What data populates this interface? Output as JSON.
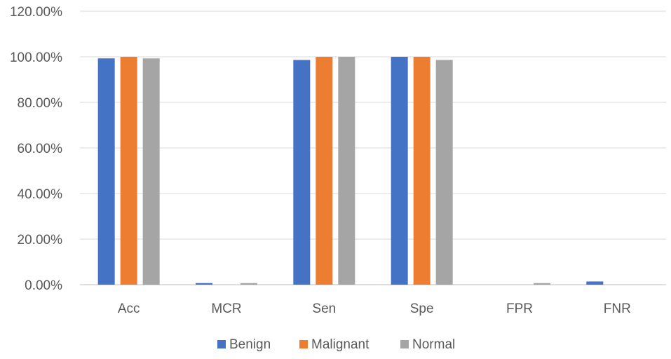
{
  "chart_data": {
    "type": "bar",
    "categories": [
      "Acc",
      "MCR",
      "Sen",
      "Spe",
      "FPR",
      "FNR"
    ],
    "series": [
      {
        "name": "Benign",
        "color": "#4472C4",
        "values": [
          99.3,
          0.7,
          98.6,
          100.0,
          0.0,
          1.4
        ]
      },
      {
        "name": "Malignant",
        "color": "#ED7D31",
        "values": [
          100.0,
          0.0,
          100.0,
          100.0,
          0.0,
          0.0
        ]
      },
      {
        "name": "Normal",
        "color": "#A5A5A5",
        "values": [
          99.3,
          0.7,
          100.0,
          98.6,
          0.7,
          0.0
        ]
      }
    ],
    "yticks": [
      "0.00%",
      "20.00%",
      "40.00%",
      "60.00%",
      "80.00%",
      "100.00%",
      "120.00%"
    ],
    "ylim": [
      0,
      120
    ],
    "grid": true,
    "legend_position": "bottom"
  }
}
